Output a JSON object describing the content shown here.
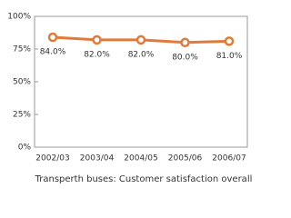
{
  "chart_data": {
    "type": "line",
    "title": "Transperth buses: Customer satisfaction overall",
    "categories": [
      "2002/03",
      "2003/04",
      "2004/05",
      "2005/06",
      "2006/07"
    ],
    "values": [
      84,
      82,
      82,
      80,
      81
    ],
    "value_labels": [
      "84.0%",
      "82.0%",
      "82.0%",
      "80.0%",
      "81.0%"
    ],
    "color": "#e07b39",
    "ylim": [
      0,
      100
    ],
    "yticks": [
      {
        "value": 0,
        "label": "0%"
      },
      {
        "value": 25,
        "label": "25%"
      },
      {
        "value": 50,
        "label": "50%"
      },
      {
        "value": 75,
        "label": "75%"
      },
      {
        "value": 100,
        "label": "100%"
      }
    ],
    "grid": false
  }
}
